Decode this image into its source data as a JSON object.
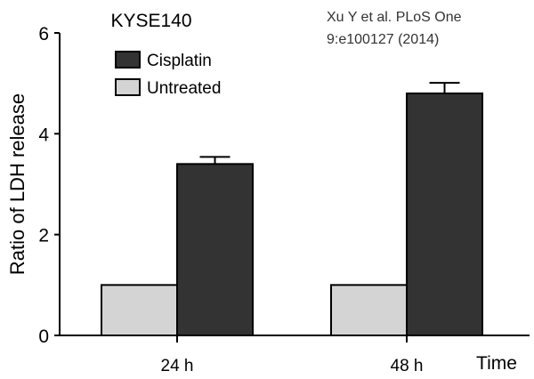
{
  "chart_data": {
    "type": "bar",
    "title": "KYSE140",
    "citation": [
      "Xu Y et al. PLoS One",
      "9:e100127 (2014)"
    ],
    "xlabel": "Time",
    "ylabel": "Ratio of LDH release",
    "categories": [
      "24 h",
      "48 h"
    ],
    "ylim": [
      0,
      6
    ],
    "yticks": [
      "0",
      "2",
      "4",
      "6"
    ],
    "series": [
      {
        "name": "Untreated",
        "color": "#d4d4d4",
        "values": [
          1.0,
          1.0
        ],
        "errors": [
          0,
          0
        ]
      },
      {
        "name": "Cisplatin",
        "color": "#333333",
        "values": [
          3.4,
          4.8
        ],
        "errors": [
          0.14,
          0.21
        ]
      }
    ],
    "legend": {
      "placement": "top-left",
      "order": [
        "Cisplatin",
        "Untreated"
      ]
    },
    "grid": false
  }
}
